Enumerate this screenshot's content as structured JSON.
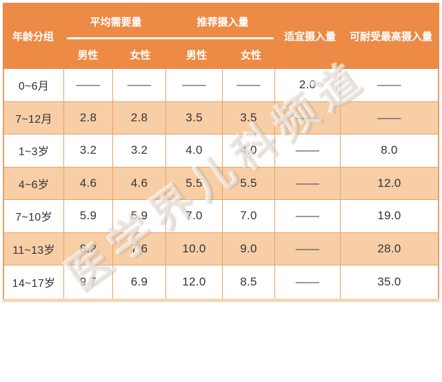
{
  "header": {
    "col_age": "年龄分组",
    "group_ear": "平均需要量",
    "group_rni": "推荐摄入量",
    "sub_male": "男性",
    "sub_female": "女性",
    "col_ai": "适宜摄入量",
    "col_ul": "可耐受最高摄入量"
  },
  "table": {
    "rows": [
      {
        "age": "0~6月",
        "values": [
          "——",
          "——",
          "——",
          "——",
          "2.0",
          "——"
        ]
      },
      {
        "age": "7~12月",
        "values": [
          "2.8",
          "2.8",
          "3.5",
          "3.5",
          "——",
          "——"
        ]
      },
      {
        "age": "1~3岁",
        "values": [
          "3.2",
          "3.2",
          "4.0",
          "4.0",
          "——",
          "8.0"
        ]
      },
      {
        "age": "4~6岁",
        "values": [
          "4.6",
          "4.6",
          "5.5",
          "5.5",
          "——",
          "12.0"
        ]
      },
      {
        "age": "7~10岁",
        "values": [
          "5.9",
          "5.9",
          "7.0",
          "7.0",
          "——",
          "19.0"
        ]
      },
      {
        "age": "11~13岁",
        "values": [
          "8.2",
          "7.6",
          "10.0",
          "9.0",
          "——",
          "28.0"
        ]
      },
      {
        "age": "14~17岁",
        "values": [
          "9.7",
          "6.9",
          "12.0",
          "8.5",
          "——",
          "35.0"
        ]
      }
    ]
  },
  "watermark": {
    "text": "医学界儿科频道"
  },
  "colors": {
    "header_bg": "#ED8A45",
    "row_alt_bg": "#F8CEA6",
    "grid_line": "#EAA066",
    "header_text": "#FFFFFF",
    "cell_text": "#333333"
  },
  "chart_data": {
    "type": "table",
    "columns": [
      "年龄分组",
      "平均需要量 男性",
      "平均需要量 女性",
      "推荐摄入量 男性",
      "推荐摄入量 女性",
      "适宜摄入量",
      "可耐受最高摄入量"
    ],
    "rows": [
      [
        "0~6月",
        "—",
        "—",
        "—",
        "—",
        "2.0",
        "—"
      ],
      [
        "7~12月",
        "2.8",
        "2.8",
        "3.5",
        "3.5",
        "—",
        "—"
      ],
      [
        "1~3岁",
        "3.2",
        "3.2",
        "4.0",
        "4.0",
        "—",
        "8.0"
      ],
      [
        "4~6岁",
        "4.6",
        "4.6",
        "5.5",
        "5.5",
        "—",
        "12.0"
      ],
      [
        "7~10岁",
        "5.9",
        "5.9",
        "7.0",
        "7.0",
        "—",
        "19.0"
      ],
      [
        "11~13岁",
        "8.2",
        "7.6",
        "10.0",
        "9.0",
        "—",
        "28.0"
      ],
      [
        "14~17岁",
        "9.7",
        "6.9",
        "12.0",
        "8.5",
        "—",
        "35.0"
      ]
    ]
  }
}
